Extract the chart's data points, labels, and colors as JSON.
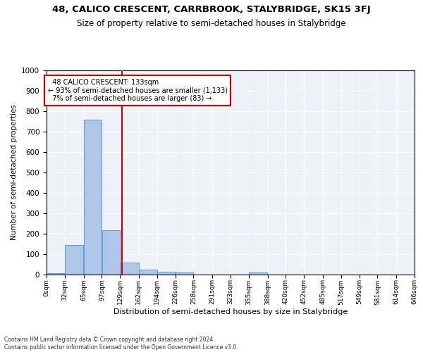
{
  "title": "48, CALICO CRESCENT, CARRBROOK, STALYBRIDGE, SK15 3FJ",
  "subtitle": "Size of property relative to semi-detached houses in Stalybridge",
  "xlabel": "Distribution of semi-detached houses by size in Stalybridge",
  "ylabel": "Number of semi-detached properties",
  "bar_values": [
    8,
    145,
    760,
    218,
    57,
    25,
    14,
    12,
    0,
    0,
    0,
    12,
    0,
    0,
    0,
    0,
    0,
    0,
    0,
    0
  ],
  "bin_edges": [
    0,
    32,
    65,
    97,
    129,
    162,
    194,
    226,
    258,
    291,
    323,
    355,
    388,
    420,
    452,
    485,
    517,
    549,
    581,
    614,
    646
  ],
  "bin_labels": [
    "0sqm",
    "32sqm",
    "65sqm",
    "97sqm",
    "129sqm",
    "162sqm",
    "194sqm",
    "226sqm",
    "258sqm",
    "291sqm",
    "323sqm",
    "355sqm",
    "388sqm",
    "420sqm",
    "452sqm",
    "485sqm",
    "517sqm",
    "549sqm",
    "581sqm",
    "614sqm",
    "646sqm"
  ],
  "property_size": 133,
  "property_label": "48 CALICO CRESCENT: 133sqm",
  "smaller_pct": 93,
  "smaller_count": 1133,
  "larger_pct": 7,
  "larger_count": 83,
  "bar_color": "#aec6e8",
  "bar_edge_color": "#5b9bd5",
  "vline_color": "#cc0000",
  "annotation_box_color": "#cc0000",
  "bg_color": "#eef2f8",
  "ylim": [
    0,
    1000
  ],
  "footer_line1": "Contains HM Land Registry data © Crown copyright and database right 2024.",
  "footer_line2": "Contains public sector information licensed under the Open Government Licence v3.0."
}
